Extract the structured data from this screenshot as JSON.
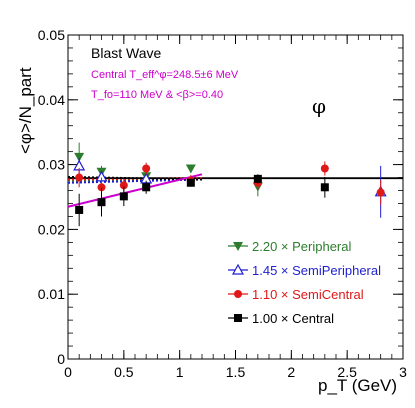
{
  "chart_data": {
    "type": "scatter",
    "title": "",
    "xlabel": "p_T (GeV)",
    "ylabel": "<φ>/N_part",
    "xlim": [
      0,
      3
    ],
    "ylim": [
      0,
      0.05
    ],
    "x_ticks": [
      "0",
      "0.5",
      "1",
      "1.5",
      "2",
      "2.5",
      "3"
    ],
    "y_ticks": [
      "0",
      "0.01",
      "0.02",
      "0.03",
      "0.04",
      "0.05"
    ],
    "annotations": {
      "model": "Blast Wave",
      "teff": "Central T_eff^φ=248.5±6 MeV",
      "tfo": "T_fo=110 MeV & <β>=0.40",
      "particle": "φ"
    },
    "legend_position": "bottom-right",
    "series": [
      {
        "name": "2.20 × Peripheral",
        "color": "#2e7d2e",
        "marker": "triangle-down",
        "x": [
          0.1,
          0.3,
          0.7,
          1.1,
          1.7
        ],
        "y": [
          0.0312,
          0.0289,
          0.0282,
          0.0294,
          0.0266
        ],
        "err": [
          0.0022,
          0.0009,
          0.0006,
          0.0006,
          0.0015
        ]
      },
      {
        "name": "1.45 × SemiPeripheral",
        "color": "#1f1fd0",
        "marker": "triangle-up-open",
        "x": [
          0.1,
          0.3,
          0.7,
          2.8
        ],
        "y": [
          0.0298,
          0.0281,
          0.0278,
          0.0258
        ],
        "err": [
          0.0012,
          0.0006,
          0.0006,
          0.004
        ]
      },
      {
        "name": "1.10 × SemiCentral",
        "color": "#e01818",
        "marker": "circle",
        "x": [
          0.1,
          0.3,
          0.5,
          0.7,
          1.1,
          1.7,
          2.3,
          2.8
        ],
        "y": [
          0.028,
          0.0265,
          0.0268,
          0.0294,
          0.0275,
          0.0272,
          0.0294,
          0.0257
        ],
        "err": [
          0.0015,
          0.0015,
          0.001,
          0.0009,
          0.0009,
          0.0011,
          0.0011,
          0.0019
        ]
      },
      {
        "name": "1.00 × Central",
        "color": "#000000",
        "marker": "square",
        "x": [
          0.1,
          0.3,
          0.5,
          0.7,
          1.1,
          1.7,
          2.3
        ],
        "y": [
          0.023,
          0.0242,
          0.0251,
          0.0265,
          0.0272,
          0.0278,
          0.0265
        ],
        "err": [
          0.0025,
          0.0022,
          0.0015,
          0.001,
          0.0004,
          0.0007,
          0.0016
        ]
      }
    ],
    "fit_lines": [
      {
        "kind": "constant",
        "color": "#000000",
        "style": "solid",
        "x": [
          0,
          3
        ],
        "y": [
          0.0279,
          0.0279
        ]
      },
      {
        "kind": "blast-wave",
        "color": "#2e7d2e",
        "style": "dotted",
        "x": [
          0,
          1.2
        ],
        "y": [
          0.0275,
          0.0278
        ]
      },
      {
        "kind": "blast-wave",
        "color": "#1f1fd0",
        "style": "dotted",
        "x": [
          0,
          1.2
        ],
        "y": [
          0.0272,
          0.0277
        ]
      },
      {
        "kind": "blast-wave",
        "color": "#e01818",
        "style": "dotted",
        "x": [
          0,
          1.2
        ],
        "y": [
          0.0277,
          0.0279
        ]
      },
      {
        "kind": "blast-wave",
        "color": "#000000",
        "style": "dotted",
        "x": [
          0,
          1.2
        ],
        "y": [
          0.0281,
          0.0277
        ]
      },
      {
        "kind": "blast-wave",
        "color": "#cc00cc",
        "style": "solid",
        "x": [
          0,
          1.2
        ],
        "y": [
          0.0235,
          0.0285
        ]
      }
    ]
  }
}
